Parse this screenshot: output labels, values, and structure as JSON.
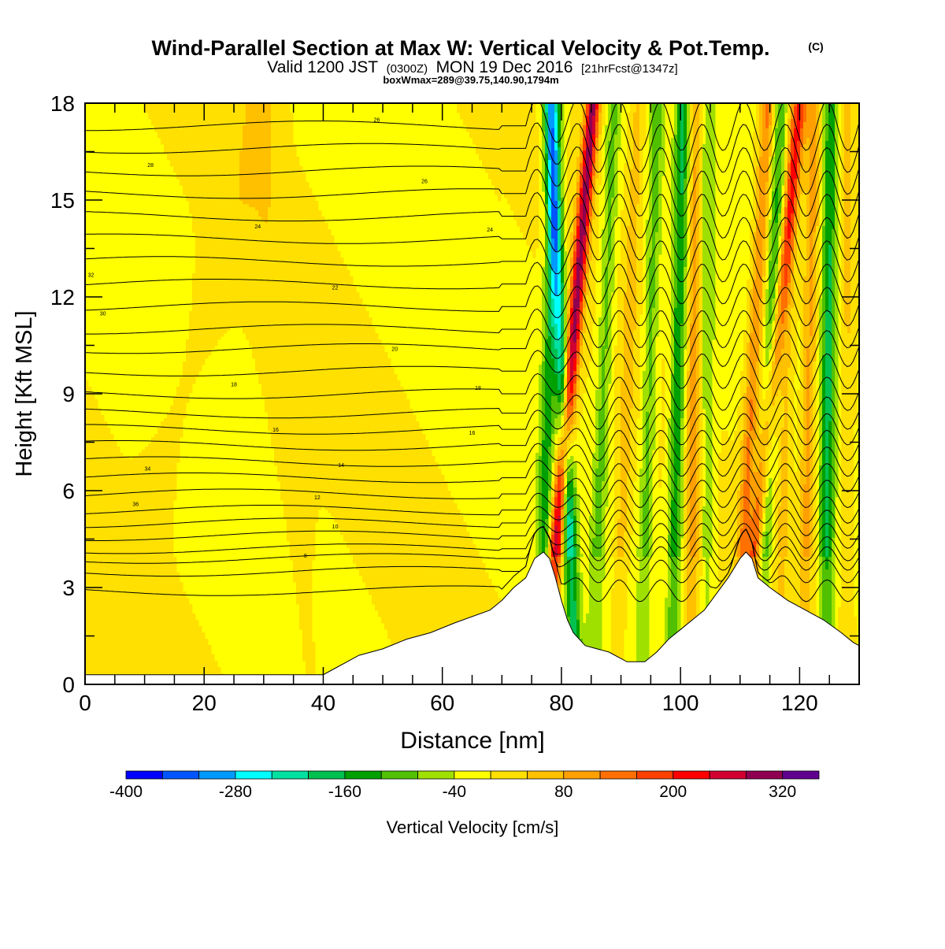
{
  "header": {
    "title": "Wind-Parallel Section at Max W: Vertical Velocity & Pot.Temp.",
    "copyright": "(C)",
    "valid_prefix": "Valid 1200 JST",
    "valid_utc": "(0300Z)",
    "valid_date": "MON 19 Dec 2016",
    "forecast": "[21hrFcst@1347z]",
    "boxwmax": "boxWmax=289@39.75,140.90,1794m"
  },
  "chart_data": {
    "type": "heatmap",
    "xlabel": "Distance [nm]",
    "ylabel": "Height [Kft MSL]",
    "xlim": [
      0,
      130
    ],
    "ylim": [
      0,
      18
    ],
    "x_ticks": [
      0,
      20,
      40,
      60,
      80,
      100,
      120
    ],
    "y_ticks": [
      0,
      3,
      6,
      9,
      12,
      15,
      18
    ],
    "colorbar": {
      "label": "Vertical Velocity [cm/s]",
      "min": -400,
      "max": 360,
      "tick_labels": [
        -400,
        -280,
        -160,
        -40,
        80,
        200,
        320
      ],
      "colors": [
        "#0000ff",
        "#0055ff",
        "#0099ff",
        "#00ffff",
        "#00e0a0",
        "#00c050",
        "#00a000",
        "#50c000",
        "#a0e000",
        "#ffff00",
        "#ffe000",
        "#ffc000",
        "#ffa000",
        "#ff7000",
        "#ff4000",
        "#ff0000",
        "#d00030",
        "#900050",
        "#600090"
      ]
    },
    "terrain": [
      [
        0,
        0.3
      ],
      [
        40,
        0.3
      ],
      [
        42,
        0.5
      ],
      [
        44,
        0.7
      ],
      [
        46,
        0.9
      ],
      [
        50,
        1.1
      ],
      [
        54,
        1.4
      ],
      [
        58,
        1.6
      ],
      [
        62,
        1.9
      ],
      [
        68,
        2.3
      ],
      [
        70,
        2.6
      ],
      [
        72,
        3.0
      ],
      [
        74,
        3.3
      ],
      [
        75.5,
        3.9
      ],
      [
        77,
        4.1
      ],
      [
        78,
        3.9
      ],
      [
        79,
        3.3
      ],
      [
        80,
        2.6
      ],
      [
        81,
        2.0
      ],
      [
        82,
        1.6
      ],
      [
        84,
        1.2
      ],
      [
        88,
        1.0
      ],
      [
        91,
        0.7
      ],
      [
        94,
        0.7
      ],
      [
        96,
        1.0
      ],
      [
        98,
        1.4
      ],
      [
        100,
        1.7
      ],
      [
        102,
        2.0
      ],
      [
        104,
        2.3
      ],
      [
        106,
        2.8
      ],
      [
        108,
        3.3
      ],
      [
        110,
        3.9
      ],
      [
        111,
        4.1
      ],
      [
        112,
        3.9
      ],
      [
        113,
        3.3
      ],
      [
        115,
        3.0
      ],
      [
        118,
        2.6
      ],
      [
        121,
        2.3
      ],
      [
        124,
        2.0
      ],
      [
        127,
        1.6
      ],
      [
        129,
        1.3
      ],
      [
        130,
        1.2
      ]
    ],
    "velocity_features": [
      {
        "x": 79.0,
        "dx": 0.45,
        "w": 300
      },
      {
        "x": 81.5,
        "dx": -0.25,
        "w": -230
      },
      {
        "x": 77.0,
        "dx": 0.15,
        "w": -130
      },
      {
        "x": 86.0,
        "dx": 0.2,
        "w": -90
      },
      {
        "x": 90.0,
        "dx": 0.2,
        "w": 60
      },
      {
        "x": 94.0,
        "dx": 0.15,
        "w": -90
      },
      {
        "x": 99.0,
        "dx": 0.1,
        "w": -150
      },
      {
        "x": 102.0,
        "dx": 0.05,
        "w": 110
      },
      {
        "x": 104.5,
        "dx": 0.0,
        "w": -70
      },
      {
        "x": 110.5,
        "dx": 0.3,
        "w": 130
      },
      {
        "x": 112.5,
        "dx": 0.55,
        "w": 170
      },
      {
        "x": 114.0,
        "dx": 0.2,
        "w": -120
      },
      {
        "x": 117.0,
        "dx": 0.15,
        "w": 60
      },
      {
        "x": 121.0,
        "dx": 0.1,
        "w": 100
      },
      {
        "x": 124.5,
        "dx": 0.05,
        "w": -160
      },
      {
        "x": 128.0,
        "dx": 0.0,
        "w": 50
      }
    ],
    "isentropes": [
      {
        "base": 2.9
      },
      {
        "base": 3.5
      },
      {
        "base": 3.9
      },
      {
        "base": 4.2
      },
      {
        "base": 4.6
      },
      {
        "base": 5.0,
        "label": "10"
      },
      {
        "base": 5.4
      },
      {
        "base": 5.9,
        "label": "12"
      },
      {
        "base": 6.4
      },
      {
        "base": 6.9,
        "label": "14"
      },
      {
        "base": 7.4
      },
      {
        "base": 7.9,
        "label": "16"
      },
      {
        "base": 8.4
      },
      {
        "base": 9.0,
        "label": "18"
      },
      {
        "base": 9.7
      },
      {
        "base": 10.4,
        "label": "20"
      },
      {
        "base": 11.0
      },
      {
        "base": 11.7,
        "label": "22"
      },
      {
        "base": 12.4
      },
      {
        "base": 13.1,
        "label": "24"
      },
      {
        "base": 13.8
      },
      {
        "base": 14.5,
        "label": "26"
      },
      {
        "base": 15.2
      },
      {
        "base": 15.9,
        "label": "28"
      },
      {
        "base": 16.6
      },
      {
        "base": 17.3,
        "label": "30"
      }
    ],
    "isentrope_labels": [
      {
        "text": "30",
        "x": 3,
        "y": 11.5
      },
      {
        "text": "32",
        "x": 1,
        "y": 12.7
      },
      {
        "text": "34",
        "x": 10.5,
        "y": 6.7
      },
      {
        "text": "36",
        "x": 8.5,
        "y": 5.6
      },
      {
        "text": "28",
        "x": 11,
        "y": 16.1
      },
      {
        "text": "24",
        "x": 29,
        "y": 14.2
      },
      {
        "text": "22",
        "x": 42,
        "y": 12.3
      },
      {
        "text": "20",
        "x": 52,
        "y": 10.4
      },
      {
        "text": "18",
        "x": 25,
        "y": 9.3
      },
      {
        "text": "16",
        "x": 32,
        "y": 7.9
      },
      {
        "text": "14",
        "x": 43,
        "y": 6.8
      },
      {
        "text": "12",
        "x": 39,
        "y": 5.8
      },
      {
        "text": "10",
        "x": 42,
        "y": 4.9
      },
      {
        "text": "8",
        "x": 37,
        "y": 4.0
      },
      {
        "text": "26",
        "x": 49,
        "y": 17.5
      },
      {
        "text": "26",
        "x": 57,
        "y": 15.6
      },
      {
        "text": "24",
        "x": 68,
        "y": 14.1
      },
      {
        "text": "18",
        "x": 66,
        "y": 9.2
      },
      {
        "text": "16",
        "x": 65,
        "y": 7.8
      }
    ]
  }
}
